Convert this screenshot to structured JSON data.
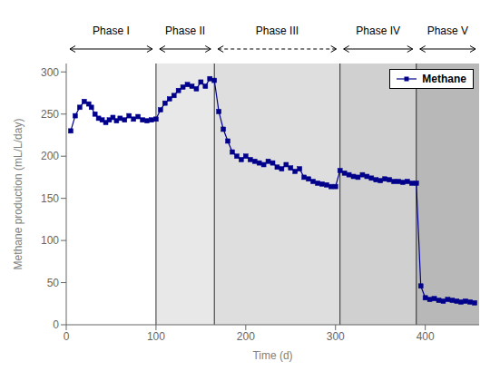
{
  "chart_data": {
    "type": "line",
    "xlabel": "Time (d)",
    "ylabel": "Methane production (mL/L/day)",
    "xlim": [
      0,
      460
    ],
    "ylim": [
      0,
      310
    ],
    "xticks": [
      0,
      100,
      200,
      300,
      400
    ],
    "yticks": [
      0,
      50,
      100,
      150,
      200,
      250,
      300
    ],
    "grid": false,
    "legend": "upper right",
    "x": [
      5,
      10,
      15,
      20,
      25,
      28,
      32,
      36,
      40,
      44,
      48,
      52,
      56,
      60,
      65,
      70,
      75,
      80,
      85,
      90,
      95,
      100,
      105,
      110,
      115,
      120,
      125,
      130,
      135,
      140,
      145,
      150,
      155,
      160,
      165,
      170,
      175,
      180,
      185,
      190,
      195,
      200,
      205,
      210,
      215,
      220,
      225,
      230,
      235,
      240,
      245,
      250,
      255,
      260,
      265,
      270,
      275,
      280,
      285,
      290,
      295,
      300,
      305,
      310,
      315,
      320,
      325,
      330,
      335,
      340,
      345,
      350,
      355,
      360,
      365,
      370,
      375,
      380,
      385,
      390,
      395,
      400,
      405,
      410,
      415,
      420,
      425,
      430,
      435,
      440,
      445,
      450,
      455
    ],
    "series": [
      {
        "name": "Methane",
        "color": "#00008B",
        "marker": "square",
        "line_style": "solid",
        "values": [
          230,
          248,
          258,
          265,
          262,
          258,
          250,
          245,
          243,
          240,
          243,
          246,
          242,
          245,
          243,
          248,
          244,
          247,
          243,
          242,
          243,
          244,
          255,
          263,
          268,
          272,
          278,
          282,
          285,
          283,
          280,
          288,
          283,
          292,
          290,
          253,
          232,
          218,
          205,
          200,
          196,
          200,
          196,
          194,
          192,
          190,
          194,
          192,
          187,
          185,
          190,
          186,
          182,
          185,
          175,
          173,
          170,
          168,
          167,
          166,
          164,
          164,
          183,
          180,
          178,
          176,
          175,
          178,
          176,
          174,
          172,
          171,
          173,
          172,
          170,
          170,
          169,
          170,
          168,
          168,
          46,
          32,
          30,
          31,
          29,
          28,
          30,
          29,
          28,
          27,
          28,
          27,
          26
        ]
      }
    ],
    "phases": [
      {
        "name": "Phase I",
        "start": 0,
        "end": 100,
        "color": "#ffffff",
        "line_style": "solid"
      },
      {
        "name": "Phase II",
        "start": 100,
        "end": 165,
        "color": "#d8d8d8",
        "line_style": "solid"
      },
      {
        "name": "Phase III",
        "start": 165,
        "end": 305,
        "color": "#c8c8c8",
        "line_style": "dashed"
      },
      {
        "name": "Phase IV",
        "start": 305,
        "end": 390,
        "color": "#b0b0b0",
        "line_style": "solid"
      },
      {
        "name": "Phase V",
        "start": 390,
        "end": 460,
        "color": "#888888",
        "line_style": "solid"
      }
    ]
  }
}
